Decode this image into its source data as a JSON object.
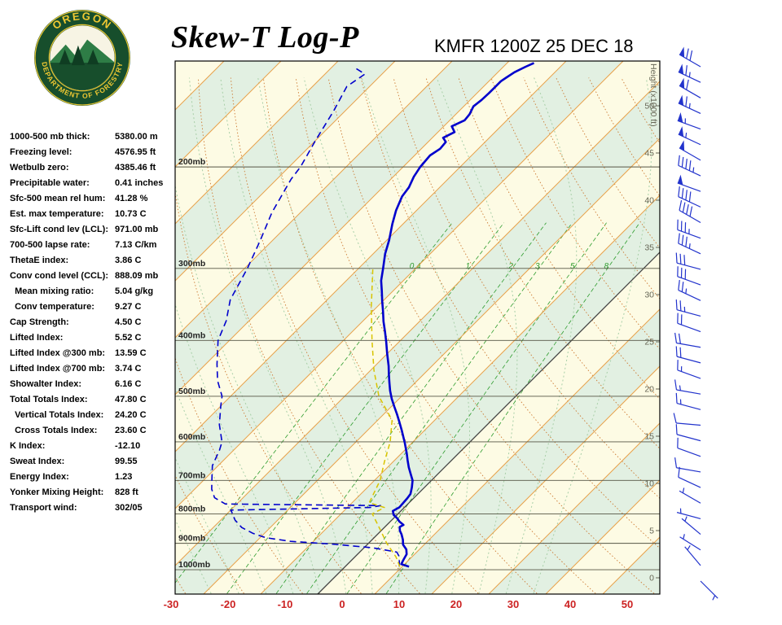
{
  "header": {
    "title": "Skew-T Log-P",
    "station_line": "KMFR 1200Z 25 DEC 18"
  },
  "logo": {
    "top_text": "OREGON",
    "bottom_text": "DEPARTMENT OF FORESTRY"
  },
  "stats": [
    {
      "label": "1000-500 mb thick:",
      "value": "5380.00 m"
    },
    {
      "label": "Freezing level:",
      "value": "4576.95 ft"
    },
    {
      "label": "Wetbulb zero:",
      "value": "4385.46 ft"
    },
    {
      "label": "Precipitable water:",
      "value": "0.41 inches"
    },
    {
      "label": "Sfc-500 mean rel hum:",
      "value": "41.28 %"
    },
    {
      "label": "Est. max temperature:",
      "value": "10.73 C"
    },
    {
      "label": "Sfc-Lift cond lev (LCL):",
      "value": "971.00 mb"
    },
    {
      "label": "700-500 lapse rate:",
      "value": "7.13 C/km"
    },
    {
      "label": "ThetaE index:",
      "value": "3.86 C"
    },
    {
      "label": "Conv cond level (CCL):",
      "value": "888.09 mb"
    },
    {
      "label": "  Mean mixing ratio:",
      "value": "5.04 g/kg"
    },
    {
      "label": "  Conv temperature:",
      "value": "9.27 C"
    },
    {
      "label": "Cap Strength:",
      "value": "4.50 C"
    },
    {
      "label": "Lifted Index:",
      "value": "5.52 C"
    },
    {
      "label": "Lifted Index @300 mb:",
      "value": "13.59 C"
    },
    {
      "label": "Lifted Index @700 mb:",
      "value": "3.74 C"
    },
    {
      "label": "Showalter Index:",
      "value": "6.16 C"
    },
    {
      "label": "Total Totals Index:",
      "value": "47.80 C"
    },
    {
      "label": "  Vertical Totals Index:",
      "value": "24.20 C"
    },
    {
      "label": "  Cross Totals Index:",
      "value": "23.60 C"
    },
    {
      "label": "K Index:",
      "value": "-12.10"
    },
    {
      "label": "Sweat Index:",
      "value": "99.55"
    },
    {
      "label": "Energy Index:",
      "value": "1.23"
    },
    {
      "label": "Yonker Mixing Height:",
      "value": "828 ft"
    },
    {
      "label": "Transport wind:",
      "value": "302/05"
    }
  ],
  "chart_data": {
    "type": "line",
    "title": "Skew-T Log-P",
    "station": "KMFR 1200Z 25 DEC 18",
    "x_axis": {
      "ticks": [
        -30,
        -20,
        -10,
        0,
        10,
        20,
        30,
        40,
        50
      ],
      "unit": "C"
    },
    "y_axis": {
      "scale": "log",
      "pressure_levels_mb": [
        200,
        300,
        400,
        500,
        600,
        700,
        800,
        900,
        1000
      ]
    },
    "height_scale_kft": [
      50,
      45,
      40,
      35,
      30,
      25,
      20,
      15,
      10,
      5,
      0
    ],
    "height_axis_title": "Height (x1000 ft)",
    "isotherms_c": {
      "min": -120,
      "max": 60,
      "step": 10
    },
    "dry_adiabats_c": {
      "min": -30,
      "max": 160,
      "step": 10
    },
    "moist_adiabats_c": [
      -25,
      -20,
      -15,
      -10,
      -5,
      0,
      5,
      10,
      15,
      20,
      25,
      30,
      35
    ],
    "mixing_ratio_g_kg": [
      0.4,
      1,
      2,
      3,
      5,
      8
    ],
    "series": [
      {
        "name": "temperature",
        "color": "#0000CC",
        "points_p_t": [
          [
            988,
            11.2
          ],
          [
            978,
            9.4
          ],
          [
            960,
            9.0
          ],
          [
            940,
            8.6
          ],
          [
            922,
            7.7
          ],
          [
            905,
            6.3
          ],
          [
            887,
            5.4
          ],
          [
            868,
            4.2
          ],
          [
            856,
            3.3
          ],
          [
            843,
            2.6
          ],
          [
            836,
            2.9
          ],
          [
            825,
            1.6
          ],
          [
            815,
            0.7
          ],
          [
            803,
            -0.6
          ],
          [
            791,
            -1.4
          ],
          [
            779,
            -0.9
          ],
          [
            766,
            -1.0
          ],
          [
            752,
            -1.1
          ],
          [
            739,
            -1.3
          ],
          [
            720,
            -2.2
          ],
          [
            700,
            -3.3
          ],
          [
            682,
            -4.8
          ],
          [
            664,
            -6.3
          ],
          [
            646,
            -7.7
          ],
          [
            628,
            -9.1
          ],
          [
            615,
            -10.2
          ],
          [
            602,
            -11.3
          ],
          [
            588,
            -12.6
          ],
          [
            573,
            -14.0
          ],
          [
            555,
            -15.8
          ],
          [
            537,
            -17.7
          ],
          [
            521,
            -19.5
          ],
          [
            505,
            -21.3
          ],
          [
            489,
            -23.0
          ],
          [
            473,
            -24.6
          ],
          [
            458,
            -26.1
          ],
          [
            443,
            -27.6
          ],
          [
            422,
            -30.0
          ],
          [
            402,
            -32.3
          ],
          [
            386,
            -34.3
          ],
          [
            371,
            -36.3
          ],
          [
            356,
            -38.2
          ],
          [
            342,
            -40.1
          ],
          [
            328,
            -42.0
          ],
          [
            315,
            -43.9
          ],
          [
            300,
            -45.7
          ],
          [
            283,
            -47.9
          ],
          [
            268,
            -49.6
          ],
          [
            251,
            -51.9
          ],
          [
            238,
            -53.6
          ],
          [
            225,
            -55.0
          ],
          [
            217,
            -55.4
          ],
          [
            208,
            -56.4
          ],
          [
            200,
            -57.0
          ],
          [
            191,
            -57.3
          ],
          [
            186,
            -56.7
          ],
          [
            181,
            -56.9
          ],
          [
            178,
            -58.1
          ],
          [
            174,
            -57.1
          ],
          [
            170,
            -58.6
          ],
          [
            166,
            -57.4
          ],
          [
            162,
            -57.6
          ],
          [
            157,
            -58.3
          ],
          [
            153,
            -58.0
          ],
          [
            149,
            -57.9
          ],
          [
            146,
            -57.9
          ],
          [
            142,
            -57.9
          ],
          [
            140,
            -57.6
          ],
          [
            137,
            -57.1
          ],
          [
            134,
            -56.1
          ],
          [
            132,
            -55.3
          ]
        ]
      },
      {
        "name": "dewpoint",
        "color": "#0000CC",
        "points_p_t": [
          [
            988,
            9.5
          ],
          [
            970,
            8.7
          ],
          [
            950,
            7.8
          ],
          [
            932,
            6.5
          ],
          [
            916,
            1.5
          ],
          [
            903,
            -6.0
          ],
          [
            893,
            -14.0
          ],
          [
            880,
            -19.0
          ],
          [
            865,
            -22.0
          ],
          [
            845,
            -25.0
          ],
          [
            820,
            -27.5
          ],
          [
            800,
            -29.0
          ],
          [
            788,
            -30.0
          ],
          [
            780,
            -6.0
          ],
          [
            774,
            -4.5
          ],
          [
            769,
            -32.0
          ],
          [
            750,
            -35.0
          ],
          [
            725,
            -37.0
          ],
          [
            700,
            -38.5
          ],
          [
            660,
            -41.0
          ],
          [
            620,
            -42.5
          ],
          [
            600,
            -43.5
          ],
          [
            560,
            -47.0
          ],
          [
            520,
            -50.0
          ],
          [
            500,
            -51.5
          ],
          [
            470,
            -55.0
          ],
          [
            440,
            -58.0
          ],
          [
            400,
            -62.0
          ],
          [
            370,
            -64.0
          ],
          [
            340,
            -67.0
          ],
          [
            300,
            -69.5
          ],
          [
            270,
            -72.0
          ],
          [
            240,
            -75.0
          ],
          [
            210,
            -77.5
          ],
          [
            200,
            -78.0
          ],
          [
            180,
            -80.0
          ],
          [
            160,
            -82.0
          ],
          [
            145,
            -84.0
          ],
          [
            138,
            -83.0
          ],
          [
            135,
            -85.5
          ]
        ]
      },
      {
        "name": "wet_bulb",
        "color": "#D8C400",
        "points_p_t": [
          [
            988,
            9.6
          ],
          [
            950,
            7.2
          ],
          [
            900,
            3.2
          ],
          [
            850,
            -0.5
          ],
          [
            800,
            -4.5
          ],
          [
            780,
            -3.5
          ],
          [
            765,
            -7.0
          ],
          [
            700,
            -9.0
          ],
          [
            650,
            -11.5
          ],
          [
            600,
            -14.0
          ],
          [
            550,
            -17.5
          ],
          [
            500,
            -24.0
          ],
          [
            450,
            -29.5
          ],
          [
            400,
            -35.0
          ],
          [
            350,
            -41.0
          ],
          [
            300,
            -47.5
          ]
        ]
      }
    ],
    "wind_barbs": [
      {
        "dir": 300,
        "speed": 70
      },
      {
        "dir": 295,
        "speed": 65
      },
      {
        "dir": 300,
        "speed": 60
      },
      {
        "dir": 295,
        "speed": 65
      },
      {
        "dir": 290,
        "speed": 55
      },
      {
        "dir": 295,
        "speed": 55
      },
      {
        "dir": 300,
        "speed": 50
      },
      {
        "dir": 295,
        "speed": 45
      },
      {
        "dir": 290,
        "speed": 50
      },
      {
        "dir": 295,
        "speed": 40
      },
      {
        "dir": 300,
        "speed": 40
      },
      {
        "dir": 290,
        "speed": 35
      },
      {
        "dir": 295,
        "speed": 35
      },
      {
        "dir": 285,
        "speed": 30
      },
      {
        "dir": 290,
        "speed": 30
      },
      {
        "dir": 295,
        "speed": 25
      },
      {
        "dir": 285,
        "speed": 25
      },
      {
        "dir": 290,
        "speed": 20
      },
      {
        "dir": 280,
        "speed": 20
      },
      {
        "dir": 285,
        "speed": 20
      },
      {
        "dir": 290,
        "speed": 15
      },
      {
        "dir": 280,
        "speed": 15
      },
      {
        "dir": 285,
        "speed": 15
      },
      {
        "dir": 275,
        "speed": 10
      },
      {
        "dir": 285,
        "speed": 10
      },
      {
        "dir": 290,
        "speed": 10
      },
      {
        "dir": 280,
        "speed": 10
      },
      {
        "dir": 295,
        "speed": 10
      },
      {
        "dir": 300,
        "speed": 5
      },
      {
        "dir": 285,
        "speed": 5
      },
      {
        "dir": 310,
        "speed": 5
      },
      {
        "dir": 302,
        "speed": 5
      },
      {
        "dir": 320,
        "speed": 5
      },
      {
        "dir": 135,
        "speed": 5
      }
    ],
    "colors": {
      "background": "#FDFBE4",
      "band": "#E2F0E2",
      "isotherm": "#E8A24C",
      "zero_isotherm": "#444444",
      "dry_adiabat": "#CC7A33",
      "moist_adiabat": "#A8CFA8",
      "mixing_ratio": "#2E9C2E",
      "pressure_line": "#555544",
      "pressure_label": "#222222",
      "height_label": "#666655",
      "axis_label": "#CC2222",
      "barb": "#2233CC"
    }
  }
}
